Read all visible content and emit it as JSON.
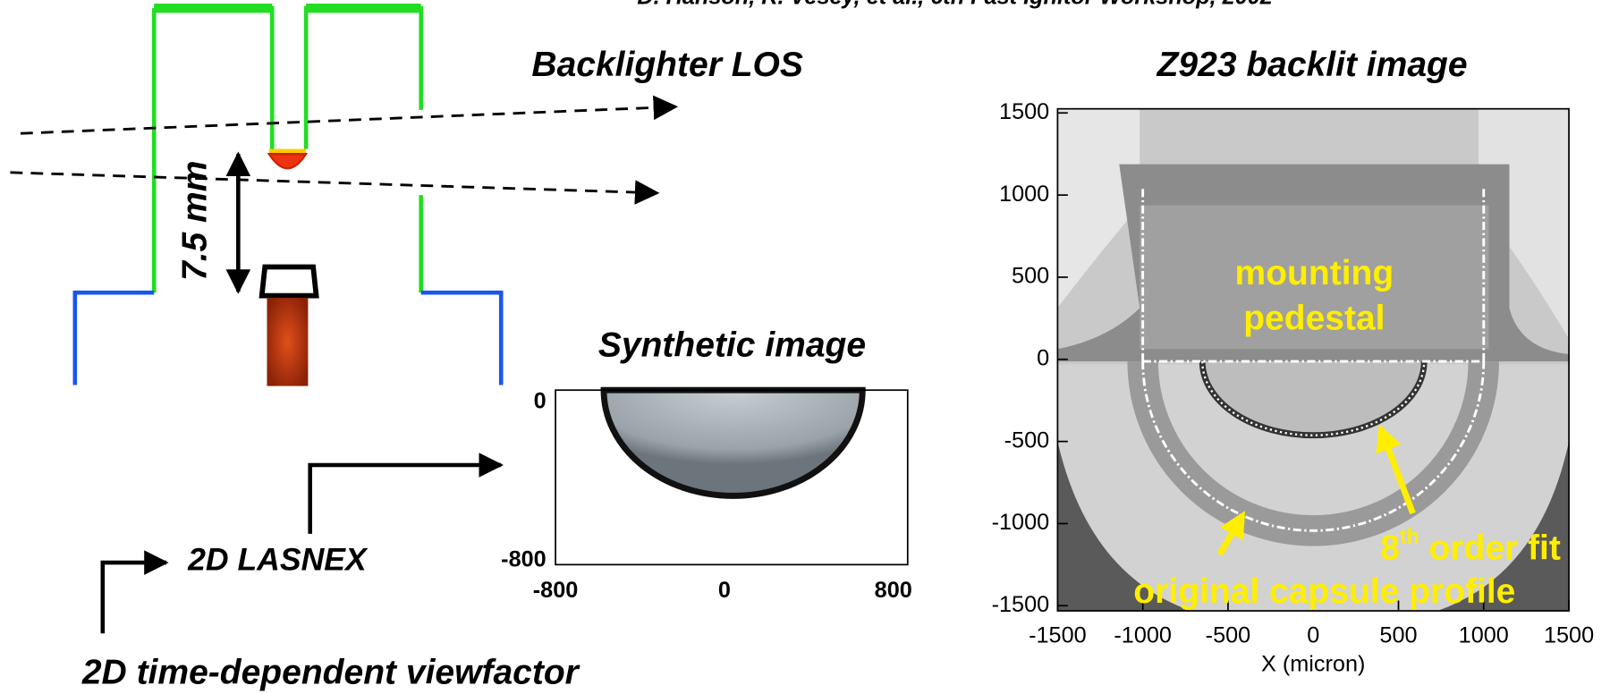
{
  "citation": "D. Hanson, R. Vesey, et al., 6th Fast Ignitor Workshop, 2002",
  "schematic": {
    "los_label": "Backlighter LOS",
    "distance_label": "7.5 mm"
  },
  "synthetic": {
    "title": "Synthetic image",
    "yticks": [
      0,
      -800
    ],
    "xticks": [
      -800,
      0,
      800
    ]
  },
  "lasnex_label": "2D LASNEX",
  "viewfactor_label": "2D time-dependent viewfactor",
  "backlit": {
    "title": "Z923 backlit image",
    "yticks": [
      1500,
      1000,
      500,
      0,
      -500,
      -1000,
      -1500
    ],
    "xticks": [
      -1500,
      -1000,
      -500,
      0,
      500,
      1000,
      1500
    ],
    "xlabel": "X (micron)",
    "annotations": {
      "pedestal": [
        "mounting",
        "pedestal"
      ],
      "fit_number": "8",
      "fit_suffix": "th",
      "fit_text": " order fit",
      "profile": "original capsule profile"
    }
  }
}
